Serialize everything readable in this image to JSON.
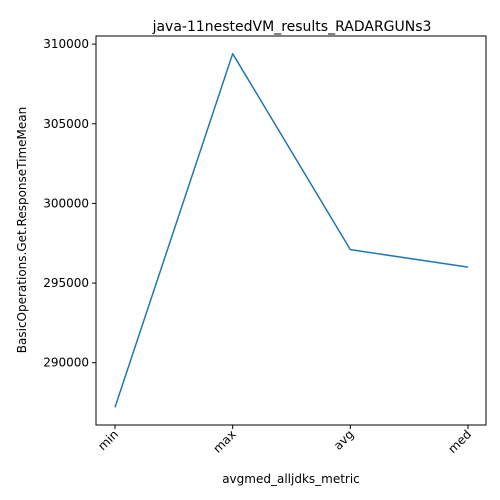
{
  "chart_data": {
    "type": "line",
    "title": "java-11nestedVM_results_RADARGUNs3",
    "xlabel": "avgmed_alljdks_metric",
    "ylabel": "BasicOperations.Get.ResponseTimeMean",
    "categories": [
      "min",
      "max",
      "avg",
      "med"
    ],
    "series": [
      {
        "values": [
          287200,
          309400,
          297100,
          296000
        ],
        "color": "#1f77b4"
      }
    ],
    "yticks": [
      290000,
      295000,
      300000,
      305000,
      310000
    ],
    "ytick_labels": [
      "290000",
      "295000",
      "300000",
      "305000",
      "310000"
    ],
    "ylim": [
      286090,
      310510
    ],
    "grid": false,
    "legend": false
  }
}
